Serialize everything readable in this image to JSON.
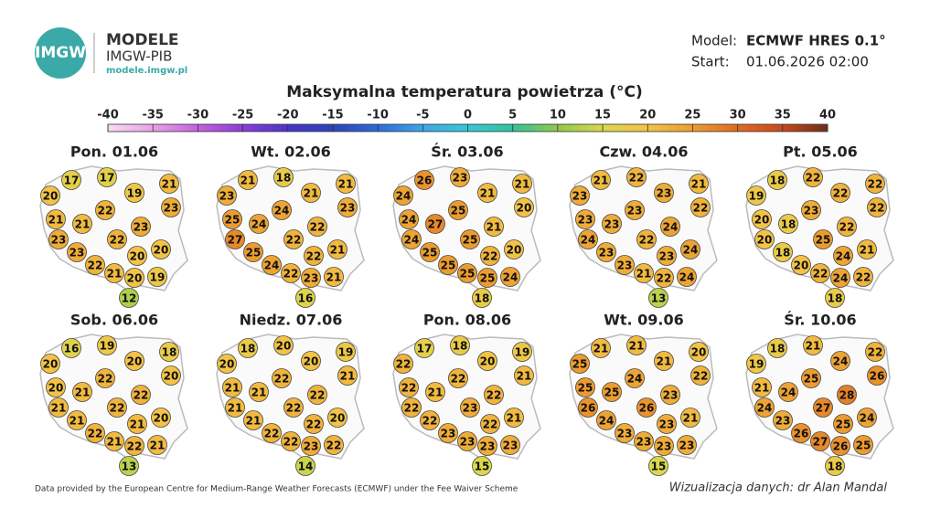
{
  "header": {
    "logo": "IMGW",
    "brand": "MODELE",
    "org": "IMGW-PIB",
    "url": "modele.imgw.pl",
    "model_label": "Model:",
    "model": "ECMWF HRES 0.1°",
    "start_label": "Start:",
    "start": "01.06.2026 02:00"
  },
  "title": "Maksymalna temperatura powietrza (°C)",
  "colorbar": {
    "ticks": [
      -40,
      -35,
      -30,
      -25,
      -20,
      -15,
      -10,
      -5,
      0,
      5,
      10,
      15,
      20,
      25,
      30,
      35,
      40
    ],
    "colors": [
      "#f7dcf2",
      "#e6a2e6",
      "#c65fe0",
      "#8c3dd8",
      "#4c34c8",
      "#2c44b8",
      "#2e6ad8",
      "#3ca6e8",
      "#36c8d6",
      "#34c19a",
      "#8fca4c",
      "#d9d84c",
      "#f3c345",
      "#ec9c2e",
      "#e06b22",
      "#c64a1a",
      "#6b2f1a"
    ]
  },
  "panels": [
    {
      "title": "Pon. 01.06",
      "values": [
        17,
        17,
        20,
        19,
        21,
        22,
        23,
        21,
        21,
        23,
        23,
        22,
        23,
        20,
        20,
        22,
        21,
        20,
        19,
        12
      ]
    },
    {
      "title": "Wt. 02.06",
      "values": [
        21,
        18,
        23,
        21,
        21,
        24,
        23,
        25,
        24,
        22,
        27,
        22,
        25,
        21,
        22,
        24,
        22,
        23,
        21,
        16
      ]
    },
    {
      "title": "Śr. 03.06",
      "values": [
        26,
        23,
        24,
        21,
        21,
        25,
        20,
        24,
        27,
        21,
        24,
        25,
        25,
        20,
        22,
        25,
        25,
        25,
        24,
        18
      ]
    },
    {
      "title": "Czw. 04.06",
      "values": [
        21,
        22,
        23,
        23,
        21,
        23,
        22,
        23,
        23,
        24,
        24,
        22,
        23,
        24,
        23,
        23,
        21,
        22,
        24,
        13
      ]
    },
    {
      "title": "Pt. 05.06",
      "values": [
        18,
        22,
        19,
        22,
        22,
        23,
        22,
        20,
        18,
        22,
        20,
        25,
        18,
        21,
        24,
        20,
        22,
        24,
        22,
        18
      ]
    },
    {
      "title": "Sob. 06.06",
      "values": [
        16,
        19,
        20,
        20,
        18,
        22,
        20,
        20,
        21,
        22,
        21,
        22,
        21,
        20,
        21,
        22,
        21,
        22,
        21,
        13
      ]
    },
    {
      "title": "Niedz. 07.06",
      "values": [
        18,
        20,
        20,
        20,
        19,
        22,
        21,
        21,
        21,
        22,
        21,
        22,
        21,
        20,
        22,
        22,
        22,
        23,
        22,
        14
      ]
    },
    {
      "title": "Pon. 08.06",
      "values": [
        17,
        18,
        22,
        20,
        19,
        22,
        21,
        22,
        21,
        22,
        22,
        23,
        22,
        21,
        22,
        23,
        23,
        23,
        23,
        15
      ]
    },
    {
      "title": "Wt. 09.06",
      "values": [
        21,
        21,
        25,
        21,
        20,
        24,
        22,
        25,
        25,
        23,
        26,
        26,
        24,
        21,
        23,
        23,
        23,
        23,
        23,
        15
      ]
    },
    {
      "title": "Śr. 10.06",
      "values": [
        18,
        21,
        19,
        24,
        22,
        25,
        26,
        21,
        24,
        28,
        24,
        27,
        23,
        24,
        25,
        26,
        27,
        26,
        25,
        18
      ]
    }
  ],
  "footer": {
    "source": "Data provided by the European Centre for Medium-Range Weather Forecasts (ECMWF) under the Fee Waiver Scheme",
    "credit": "Wizualizacja danych: dr Alan Mandal"
  }
}
